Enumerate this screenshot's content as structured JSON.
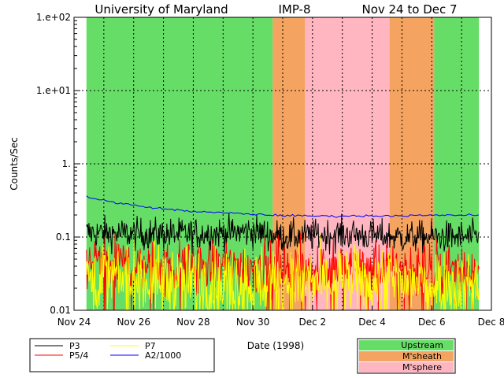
{
  "chart_data": {
    "type": "line",
    "title": {
      "left": "University of Maryland",
      "center": "IMP-8",
      "right": "Nov 24 to Dec 7"
    },
    "xlabel": "Date (1998)",
    "ylabel": "Counts/Sec",
    "x_scale": "date",
    "xlim": [
      "1998-11-24",
      "1998-12-08"
    ],
    "x_ticks": [
      {
        "date": "1998-11-24",
        "label": "Nov 24"
      },
      {
        "date": "1998-11-26",
        "label": "Nov 26"
      },
      {
        "date": "1998-11-28",
        "label": "Nov 28"
      },
      {
        "date": "1998-11-30",
        "label": "Nov 30"
      },
      {
        "date": "1998-12-02",
        "label": "Dec 2"
      },
      {
        "date": "1998-12-04",
        "label": "Dec 4"
      },
      {
        "date": "1998-12-06",
        "label": "Dec 6"
      },
      {
        "date": "1998-12-08",
        "label": "Dec 8"
      }
    ],
    "y_scale": "log",
    "ylim": [
      0.01,
      100
    ],
    "y_ticks": [
      {
        "value": 0.01,
        "label": "0.01"
      },
      {
        "value": 0.1,
        "label": "0.1"
      },
      {
        "value": 1,
        "label": "1."
      },
      {
        "value": 10,
        "label": "1.e+01"
      },
      {
        "value": 100,
        "label": "1.e+02"
      }
    ],
    "grid": "dotted",
    "regions": [
      {
        "kind": "Upstream",
        "start": "1998-11-24T10:00",
        "end": "1998-11-30T16:00"
      },
      {
        "kind": "M'sheath",
        "start": "1998-11-30T16:00",
        "end": "1998-12-01T18:00"
      },
      {
        "kind": "M'sphere",
        "start": "1998-12-01T18:00",
        "end": "1998-12-04T14:00"
      },
      {
        "kind": "M'sheath",
        "start": "1998-12-04T14:00",
        "end": "1998-12-06T02:00"
      },
      {
        "kind": "Upstream",
        "start": "1998-12-06T02:00",
        "end": "1998-12-07T14:00"
      }
    ],
    "region_colors": {
      "Upstream": "#66dd66",
      "M'sheath": "#f4a460",
      "M'sphere": "#ffb6c1"
    },
    "series": [
      {
        "name": "P3",
        "color": "#000000",
        "noise": 0.45,
        "points": [
          [
            "1998-11-24T10:00",
            0.115
          ],
          [
            "1998-11-26T00:00",
            0.11
          ],
          [
            "1998-11-28T00:00",
            0.11
          ],
          [
            "1998-11-30T00:00",
            0.12
          ],
          [
            "1998-12-01T00:00",
            0.1
          ],
          [
            "1998-12-03T00:00",
            0.11
          ],
          [
            "1998-12-05T00:00",
            0.1
          ],
          [
            "1998-12-06T00:00",
            0.1
          ],
          [
            "1998-12-07T14:00",
            0.1
          ]
        ]
      },
      {
        "name": "P5/4",
        "color": "#ff0000",
        "noise": 0.75,
        "points": [
          [
            "1998-11-24T10:00",
            0.045
          ],
          [
            "1998-11-27T00:00",
            0.04
          ],
          [
            "1998-11-30T00:00",
            0.04
          ],
          [
            "1998-12-02T00:00",
            0.038
          ],
          [
            "1998-12-05T00:00",
            0.038
          ],
          [
            "1998-12-07T14:00",
            0.035
          ]
        ]
      },
      {
        "name": "P7",
        "color": "#ffff00",
        "noise": 1.0,
        "points": [
          [
            "1998-11-24T10:00",
            0.028
          ],
          [
            "1998-11-27T00:00",
            0.025
          ],
          [
            "1998-11-30T00:00",
            0.025
          ],
          [
            "1998-12-02T00:00",
            0.024
          ],
          [
            "1998-12-05T00:00",
            0.024
          ],
          [
            "1998-12-07T14:00",
            0.022
          ]
        ]
      },
      {
        "name": "A2/1000",
        "color": "#0000ff",
        "noise": 0.03,
        "points": [
          [
            "1998-11-24T10:00",
            0.37
          ],
          [
            "1998-11-24T14:00",
            0.34
          ],
          [
            "1998-11-25T12:00",
            0.29
          ],
          [
            "1998-11-26T12:00",
            0.255
          ],
          [
            "1998-11-27T12:00",
            0.232
          ],
          [
            "1998-11-28T12:00",
            0.218
          ],
          [
            "1998-11-29T12:00",
            0.21
          ],
          [
            "1998-11-30T12:00",
            0.2
          ],
          [
            "1998-12-01T12:00",
            0.195
          ],
          [
            "1998-12-02T12:00",
            0.193
          ],
          [
            "1998-12-04T00:00",
            0.195
          ],
          [
            "1998-12-06T00:00",
            0.197
          ],
          [
            "1998-12-07T14:00",
            0.2
          ]
        ]
      }
    ],
    "series_legend": [
      {
        "name": "P3",
        "color": "#000000"
      },
      {
        "name": "P7",
        "color": "#ffff00"
      },
      {
        "name": "P5/4",
        "color": "#ff0000"
      },
      {
        "name": "A2/1000",
        "color": "#0000ff"
      }
    ],
    "region_legend": [
      {
        "name": "Upstream",
        "color": "#66dd66"
      },
      {
        "name": "M'sheath",
        "color": "#f4a460"
      },
      {
        "name": "M'sphere",
        "color": "#ffb6c1"
      }
    ]
  }
}
